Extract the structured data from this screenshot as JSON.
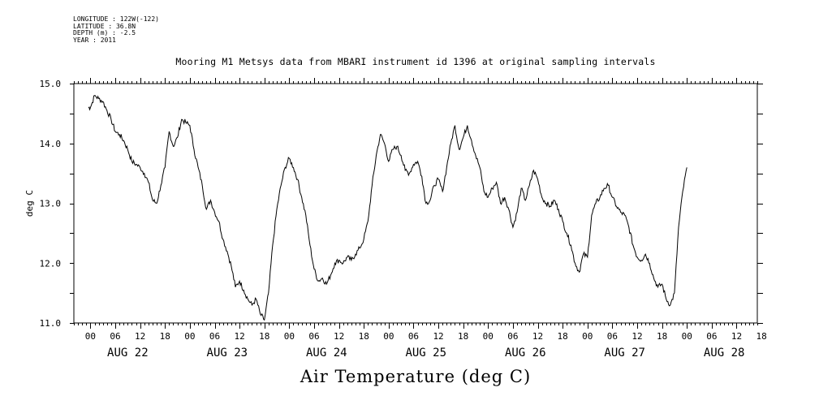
{
  "header": {
    "longitude": "LONGITUDE : 122W(-122)",
    "latitude": "LATITUDE : 36.8N",
    "depth": "DEPTH (m) : -2.5",
    "year": "YEAR : 2011"
  },
  "chart_data": {
    "type": "line",
    "title": "Mooring M1 Metsys data from MBARI instrument id 1396 at original sampling intervals",
    "xlabel": "Air Temperature (deg C)",
    "ylabel": "deg C",
    "ylim": [
      11.0,
      15.0
    ],
    "xlim_hours": [
      -4,
      161
    ],
    "yticks": [
      "15.0",
      "14.0",
      "13.0",
      "12.0",
      "11.0"
    ],
    "hour_ticks": [
      "00",
      "06",
      "12",
      "18",
      "00",
      "06",
      "12",
      "18",
      "00",
      "06",
      "12",
      "18",
      "00",
      "06",
      "12",
      "18",
      "00",
      "06",
      "12",
      "18",
      "00",
      "06",
      "12",
      "18",
      "00",
      "06",
      "12",
      "18"
    ],
    "day_labels": [
      "AUG 22",
      "AUG 23",
      "AUG 24",
      "AUG 25",
      "AUG 26",
      "AUG 27",
      "AUG 28"
    ],
    "series": [
      {
        "values": [
          [
            -0.5,
            14.6
          ],
          [
            0,
            14.6
          ],
          [
            1,
            14.8
          ],
          [
            2,
            14.75
          ],
          [
            3,
            14.7
          ],
          [
            4,
            14.55
          ],
          [
            5,
            14.4
          ],
          [
            6,
            14.2
          ],
          [
            7,
            14.15
          ],
          [
            8,
            14.05
          ],
          [
            9,
            13.9
          ],
          [
            10,
            13.7
          ],
          [
            11,
            13.65
          ],
          [
            12,
            13.6
          ],
          [
            13,
            13.5
          ],
          [
            14,
            13.35
          ],
          [
            15,
            13.05
          ],
          [
            16,
            13.0
          ],
          [
            17,
            13.3
          ],
          [
            18,
            13.6
          ],
          [
            19,
            14.2
          ],
          [
            20,
            13.95
          ],
          [
            21,
            14.1
          ],
          [
            22,
            14.4
          ],
          [
            23,
            14.35
          ],
          [
            24,
            14.3
          ],
          [
            25,
            13.9
          ],
          [
            26,
            13.6
          ],
          [
            27,
            13.3
          ],
          [
            28,
            12.9
          ],
          [
            29,
            13.05
          ],
          [
            30,
            12.85
          ],
          [
            31,
            12.7
          ],
          [
            32,
            12.4
          ],
          [
            33,
            12.2
          ],
          [
            34,
            11.95
          ],
          [
            35,
            11.6
          ],
          [
            36,
            11.7
          ],
          [
            37,
            11.55
          ],
          [
            38,
            11.4
          ],
          [
            39,
            11.3
          ],
          [
            40,
            11.4
          ],
          [
            41,
            11.15
          ],
          [
            42,
            11.05
          ],
          [
            43,
            11.5
          ],
          [
            44,
            12.3
          ],
          [
            45,
            12.9
          ],
          [
            46,
            13.3
          ],
          [
            47,
            13.6
          ],
          [
            48,
            13.75
          ],
          [
            49,
            13.6
          ],
          [
            50,
            13.4
          ],
          [
            51,
            13.1
          ],
          [
            52,
            12.8
          ],
          [
            53,
            12.3
          ],
          [
            54,
            11.9
          ],
          [
            55,
            11.7
          ],
          [
            56,
            11.75
          ],
          [
            57,
            11.65
          ],
          [
            58,
            11.8
          ],
          [
            59,
            12.0
          ],
          [
            60,
            12.05
          ],
          [
            61,
            12.0
          ],
          [
            62,
            12.1
          ],
          [
            63,
            12.05
          ],
          [
            64,
            12.15
          ],
          [
            65,
            12.25
          ],
          [
            66,
            12.4
          ],
          [
            67,
            12.7
          ],
          [
            68,
            13.3
          ],
          [
            69,
            13.8
          ],
          [
            70,
            14.15
          ],
          [
            71,
            14.0
          ],
          [
            72,
            13.7
          ],
          [
            73,
            13.9
          ],
          [
            74,
            13.95
          ],
          [
            75,
            13.8
          ],
          [
            76,
            13.55
          ],
          [
            77,
            13.5
          ],
          [
            78,
            13.65
          ],
          [
            79,
            13.7
          ],
          [
            80,
            13.45
          ],
          [
            81,
            13.0
          ],
          [
            82,
            13.05
          ],
          [
            83,
            13.3
          ],
          [
            84,
            13.4
          ],
          [
            85,
            13.2
          ],
          [
            86,
            13.6
          ],
          [
            87,
            14.0
          ],
          [
            88,
            14.3
          ],
          [
            89,
            13.9
          ],
          [
            90,
            14.1
          ],
          [
            91,
            14.3
          ],
          [
            92,
            14.05
          ],
          [
            93,
            13.8
          ],
          [
            94,
            13.6
          ],
          [
            95,
            13.2
          ],
          [
            96,
            13.1
          ],
          [
            97,
            13.25
          ],
          [
            98,
            13.35
          ],
          [
            99,
            13.0
          ],
          [
            100,
            13.1
          ],
          [
            101,
            12.9
          ],
          [
            102,
            12.6
          ],
          [
            103,
            12.85
          ],
          [
            104,
            13.25
          ],
          [
            105,
            13.05
          ],
          [
            106,
            13.3
          ],
          [
            107,
            13.55
          ],
          [
            108,
            13.4
          ],
          [
            109,
            13.1
          ],
          [
            110,
            13.0
          ],
          [
            111,
            12.95
          ],
          [
            112,
            13.05
          ],
          [
            113,
            12.9
          ],
          [
            114,
            12.7
          ],
          [
            115,
            12.5
          ],
          [
            116,
            12.3
          ],
          [
            117,
            12.0
          ],
          [
            118,
            11.85
          ],
          [
            119,
            12.15
          ],
          [
            120,
            12.1
          ],
          [
            121,
            12.8
          ],
          [
            122,
            13.0
          ],
          [
            123,
            13.1
          ],
          [
            124,
            13.25
          ],
          [
            125,
            13.3
          ],
          [
            126,
            13.1
          ],
          [
            127,
            12.95
          ],
          [
            128,
            12.85
          ],
          [
            129,
            12.8
          ],
          [
            130,
            12.6
          ],
          [
            131,
            12.3
          ],
          [
            132,
            12.1
          ],
          [
            133,
            12.05
          ],
          [
            134,
            12.15
          ],
          [
            135,
            12.0
          ],
          [
            136,
            11.75
          ],
          [
            137,
            11.6
          ],
          [
            138,
            11.65
          ],
          [
            139,
            11.4
          ],
          [
            140,
            11.3
          ],
          [
            141,
            11.5
          ],
          [
            142,
            12.6
          ],
          [
            143,
            13.2
          ],
          [
            144,
            13.6
          ]
        ]
      }
    ]
  }
}
